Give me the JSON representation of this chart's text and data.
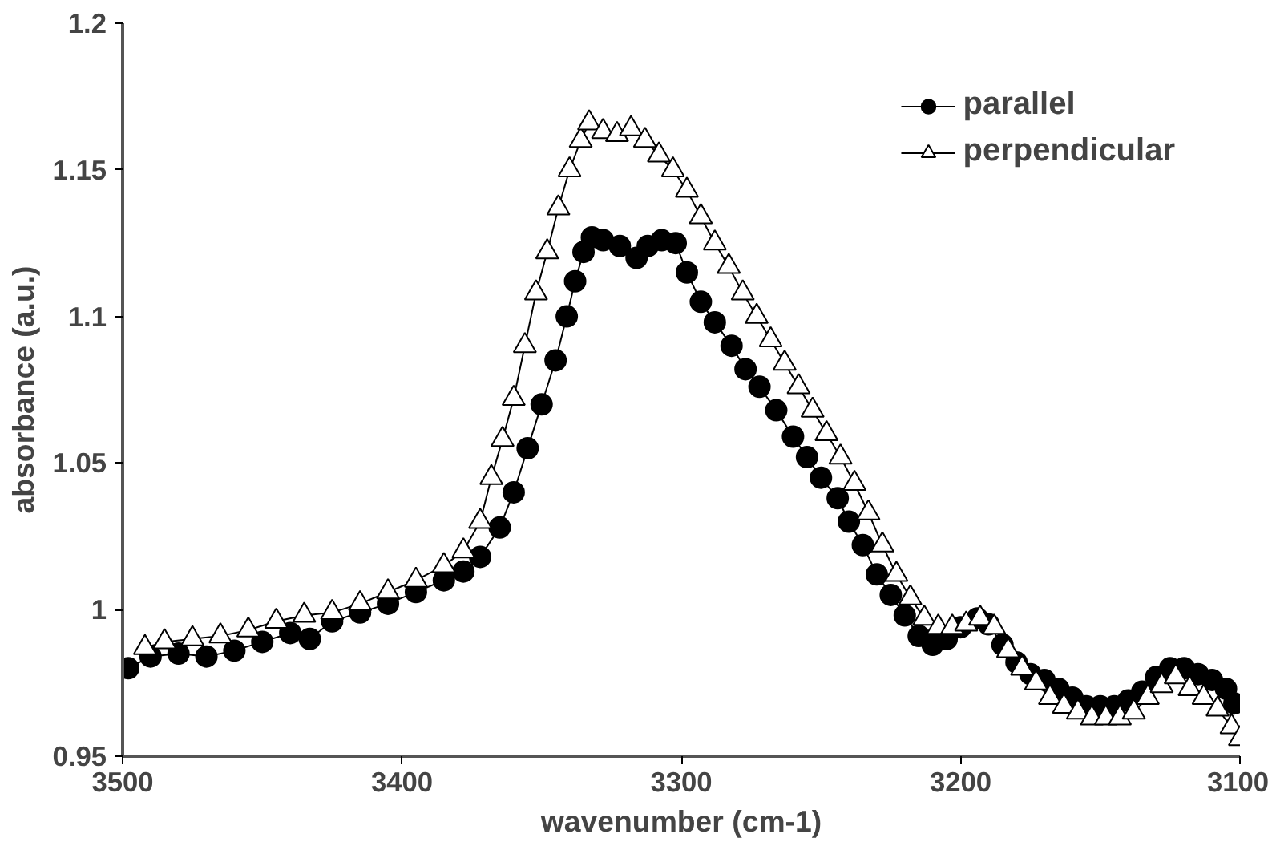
{
  "chart_data": {
    "type": "line",
    "xlabel": "wavenumber (cm-1)",
    "ylabel": "absorbance (a.u.)",
    "xlim": [
      3500,
      3100
    ],
    "xticks": [
      3500,
      3400,
      3300,
      3200,
      3100
    ],
    "ylim": [
      0.95,
      1.2
    ],
    "yticks": [
      0.95,
      1,
      1.05,
      1.1,
      1.15,
      1.2
    ],
    "grid": false,
    "legend": "top right",
    "line_style": "solid",
    "series": [
      {
        "name": "parallel",
        "color": "#000000",
        "marker": "circle",
        "x": [
          3498,
          3490,
          3480,
          3470,
          3460,
          3450,
          3440,
          3433,
          3425,
          3415,
          3405,
          3395,
          3385,
          3378,
          3372,
          3365,
          3360,
          3355,
          3350,
          3345,
          3341,
          3338,
          3335,
          3332,
          3328,
          3322,
          3316,
          3312,
          3307,
          3302,
          3298,
          3293,
          3288,
          3282,
          3277,
          3272,
          3266,
          3260,
          3255,
          3250,
          3244,
          3240,
          3235,
          3230,
          3225,
          3220,
          3215,
          3210,
          3205,
          3200,
          3194,
          3190,
          3185,
          3180,
          3175,
          3170,
          3165,
          3160,
          3155,
          3150,
          3145,
          3140,
          3135,
          3130,
          3125,
          3120,
          3115,
          3110,
          3105,
          3102
        ],
        "values": [
          0.98,
          0.984,
          0.985,
          0.984,
          0.986,
          0.989,
          0.992,
          0.99,
          0.996,
          0.999,
          1.002,
          1.006,
          1.01,
          1.013,
          1.018,
          1.028,
          1.04,
          1.055,
          1.07,
          1.085,
          1.1,
          1.112,
          1.122,
          1.127,
          1.126,
          1.124,
          1.12,
          1.124,
          1.126,
          1.125,
          1.115,
          1.105,
          1.098,
          1.09,
          1.082,
          1.076,
          1.068,
          1.059,
          1.052,
          1.045,
          1.038,
          1.03,
          1.022,
          1.012,
          1.005,
          0.998,
          0.991,
          0.988,
          0.99,
          0.994,
          0.997,
          0.995,
          0.988,
          0.982,
          0.978,
          0.976,
          0.973,
          0.97,
          0.967,
          0.967,
          0.967,
          0.969,
          0.972,
          0.977,
          0.98,
          0.98,
          0.978,
          0.976,
          0.973,
          0.968
        ]
      },
      {
        "name": "perpendicular",
        "color": "#000000",
        "marker": "triangle",
        "x": [
          3492,
          3485,
          3475,
          3465,
          3455,
          3445,
          3435,
          3425,
          3415,
          3405,
          3395,
          3385,
          3378,
          3372,
          3368,
          3364,
          3360,
          3356,
          3352,
          3348,
          3344,
          3340,
          3336,
          3333,
          3328,
          3323,
          3318,
          3313,
          3308,
          3303,
          3298,
          3293,
          3288,
          3283,
          3278,
          3273,
          3268,
          3263,
          3258,
          3253,
          3248,
          3243,
          3238,
          3233,
          3228,
          3223,
          3218,
          3213,
          3208,
          3203,
          3198,
          3193,
          3188,
          3183,
          3178,
          3173,
          3168,
          3163,
          3158,
          3153,
          3148,
          3143,
          3138,
          3133,
          3128,
          3123,
          3118,
          3113,
          3108,
          3103,
          3100
        ],
        "values": [
          0.987,
          0.989,
          0.99,
          0.991,
          0.993,
          0.996,
          0.998,
          0.999,
          1.002,
          1.006,
          1.01,
          1.015,
          1.02,
          1.03,
          1.045,
          1.058,
          1.072,
          1.09,
          1.108,
          1.122,
          1.137,
          1.15,
          1.16,
          1.166,
          1.163,
          1.162,
          1.164,
          1.16,
          1.155,
          1.15,
          1.143,
          1.134,
          1.125,
          1.117,
          1.108,
          1.1,
          1.092,
          1.084,
          1.076,
          1.068,
          1.06,
          1.052,
          1.043,
          1.033,
          1.022,
          1.012,
          1.004,
          0.997,
          0.994,
          0.994,
          0.995,
          0.997,
          0.994,
          0.986,
          0.98,
          0.975,
          0.97,
          0.967,
          0.965,
          0.963,
          0.963,
          0.963,
          0.965,
          0.97,
          0.974,
          0.977,
          0.973,
          0.97,
          0.966,
          0.96,
          0.956
        ]
      }
    ]
  }
}
